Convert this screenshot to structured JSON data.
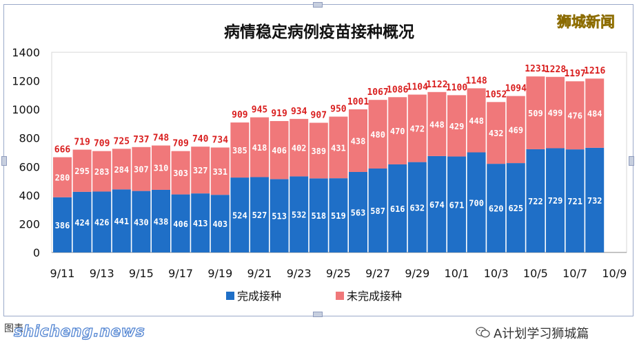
{
  "brand": "狮城新闻",
  "source_label": "图表：",
  "watermark_text": "shicheng.news",
  "account_name": "A计划学习狮城篇",
  "colors": {
    "completed": "#1f6fc7",
    "incomplete": "#f0787a",
    "total_label": "#d91e1e"
  },
  "chart_data": {
    "type": "bar",
    "stacked": true,
    "title": "病情稳定病例疫苗接种概况",
    "categories": [
      "9/11",
      "9/12",
      "9/13",
      "9/14",
      "9/15",
      "9/16",
      "9/17",
      "9/18",
      "9/19",
      "9/20",
      "9/21",
      "9/22",
      "9/23",
      "9/24",
      "9/25",
      "9/26",
      "9/27",
      "9/28",
      "9/29",
      "9/30",
      "10/1",
      "10/2",
      "10/3",
      "10/4",
      "10/5",
      "10/6",
      "10/7",
      "10/8"
    ],
    "x_tick_labels": [
      "9/11",
      "9/13",
      "9/15",
      "9/17",
      "9/19",
      "9/21",
      "9/23",
      "9/25",
      "9/27",
      "9/29",
      "10/1",
      "10/3",
      "10/5",
      "10/7",
      "10/9"
    ],
    "series": [
      {
        "name": "完成接种",
        "values": [
          386,
          424,
          426,
          441,
          430,
          438,
          406,
          413,
          403,
          524,
          527,
          513,
          532,
          518,
          519,
          563,
          587,
          616,
          632,
          674,
          671,
          700,
          620,
          625,
          722,
          729,
          721,
          732
        ]
      },
      {
        "name": "未完成接种",
        "values": [
          280,
          295,
          283,
          284,
          307,
          310,
          303,
          327,
          331,
          385,
          418,
          406,
          402,
          389,
          431,
          438,
          480,
          470,
          472,
          448,
          429,
          448,
          432,
          469,
          509,
          499,
          476,
          484
        ]
      }
    ],
    "totals": [
      666,
      719,
      709,
      725,
      737,
      748,
      709,
      740,
      734,
      909,
      945,
      919,
      934,
      907,
      950,
      1001,
      1067,
      1086,
      1104,
      1122,
      1100,
      1148,
      1052,
      1094,
      1231,
      1228,
      1197,
      1216
    ],
    "ylim": [
      0,
      1400
    ],
    "yticks": [
      0,
      200,
      400,
      600,
      800,
      1000,
      1200,
      1400
    ],
    "grid": false,
    "legend_position": "bottom"
  }
}
